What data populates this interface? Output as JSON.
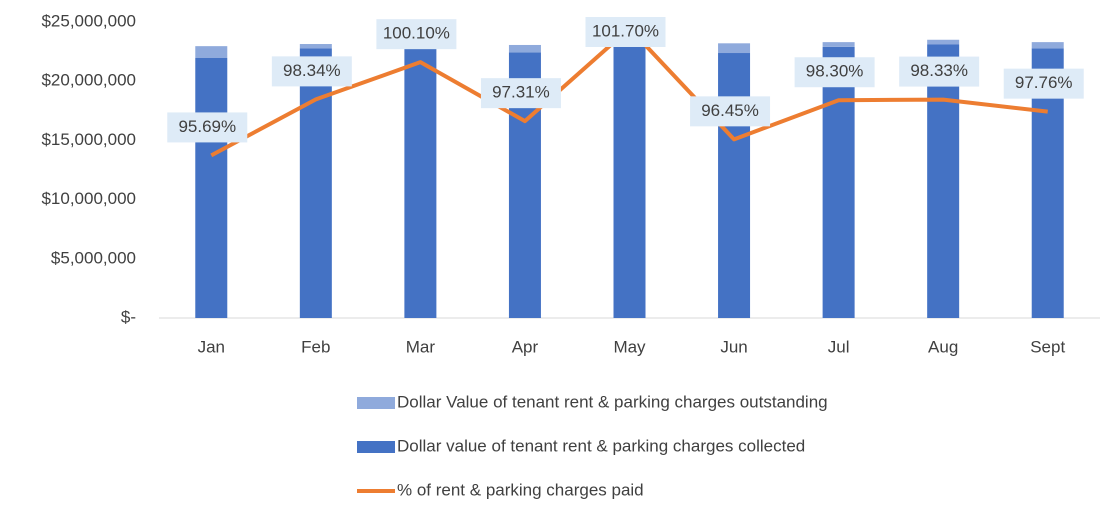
{
  "chart_data": {
    "type": "bar_line",
    "categories": [
      "Jan",
      "Feb",
      "Mar",
      "Apr",
      "May",
      "Jun",
      "Jul",
      "Aug",
      "Sept"
    ],
    "series": [
      {
        "name": "Dollar Value of tenant rent & parking charges outstanding",
        "type": "bar",
        "stack": "rent",
        "color": "#8faadc",
        "values": [
          1000000,
          380000,
          0,
          620000,
          0,
          820000,
          400000,
          400000,
          520000
        ]
      },
      {
        "name": "Dollar value of tenant rent & parking charges collected",
        "type": "bar",
        "stack": "rent",
        "color": "#4472c4",
        "values": [
          21960000,
          22760000,
          23000000,
          22440000,
          23000000,
          22380000,
          22900000,
          23100000,
          22780000
        ]
      },
      {
        "name": "% of rent & parking charges paid",
        "type": "line",
        "axis": "y2",
        "color": "#ed7d31",
        "values": [
          95.69,
          98.34,
          100.1,
          97.31,
          101.7,
          96.45,
          98.3,
          98.33,
          97.76
        ],
        "value_labels": [
          "95.69%",
          "98.34%",
          "100.10%",
          "97.31%",
          "101.70%",
          "96.45%",
          "98.30%",
          "98.33%",
          "97.76%"
        ]
      }
    ],
    "ylim": [
      0,
      25000000
    ],
    "yticks": [
      {
        "value": 0,
        "label": "$-"
      },
      {
        "value": 5000000,
        "label": "$5,000,000"
      },
      {
        "value": 10000000,
        "label": "$10,000,000"
      },
      {
        "value": 15000000,
        "label": "$15,000,000"
      },
      {
        "value": 20000000,
        "label": "$20,000,000"
      },
      {
        "value": 25000000,
        "label": "$25,000,000"
      }
    ],
    "y2lim": [
      88,
      102
    ],
    "grid": false,
    "legend": "bottom"
  }
}
